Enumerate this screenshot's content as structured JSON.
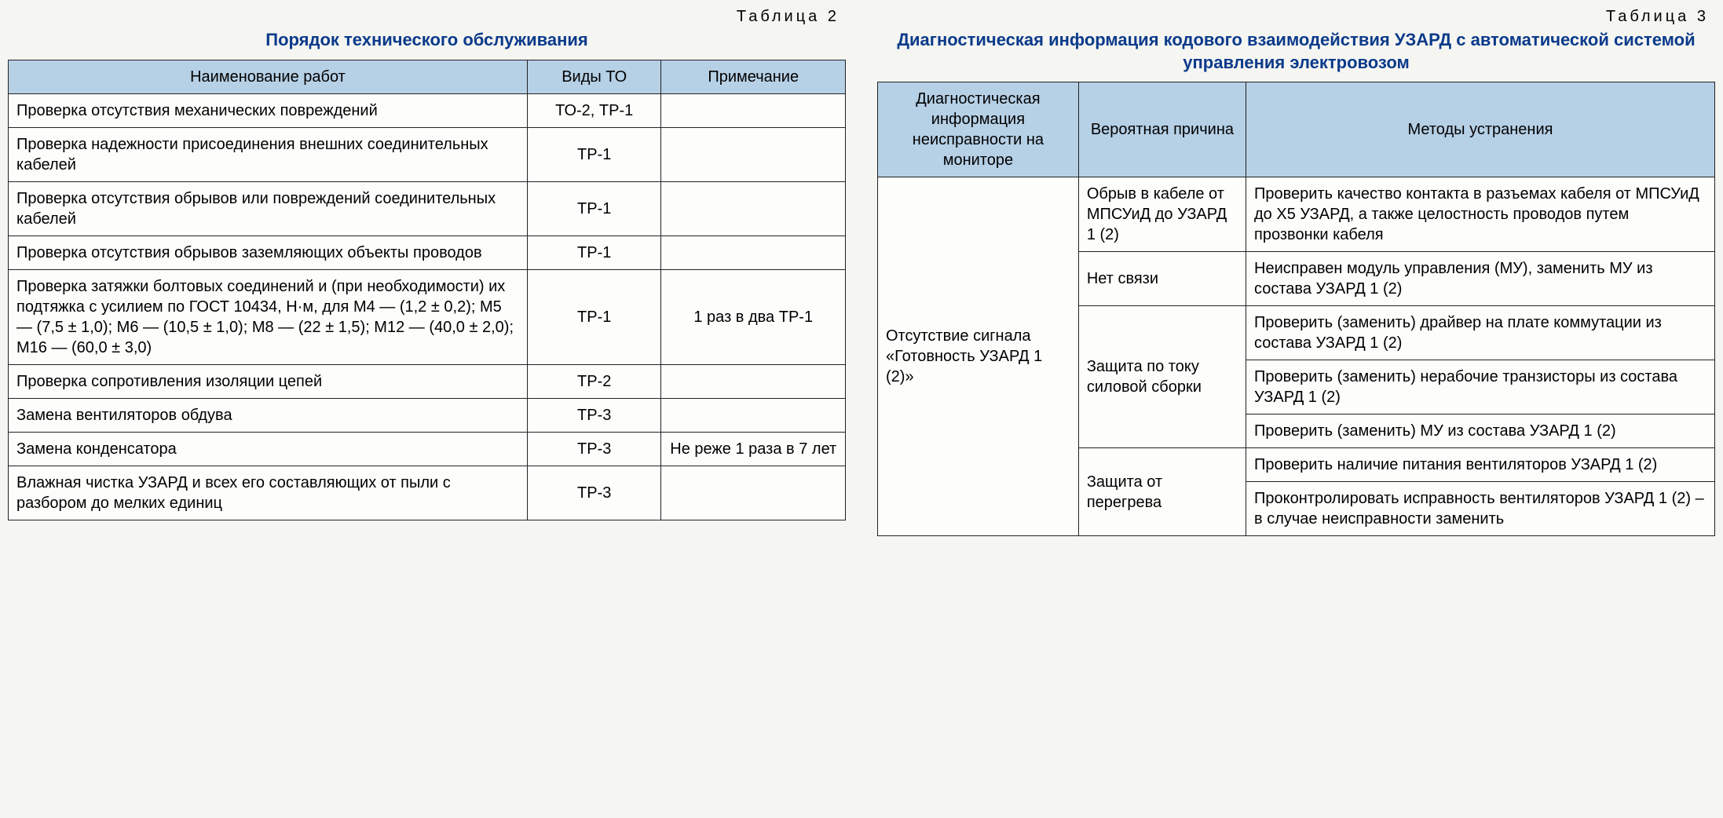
{
  "tableA": {
    "label": "Таблица 2",
    "title": "Порядок технического обслуживания",
    "headers": [
      "Наименование работ",
      "Виды ТО",
      "Примечание"
    ],
    "rows": [
      {
        "name": "Проверка отсутствия механических повреждений",
        "type": "ТО-2, ТР-1",
        "note": ""
      },
      {
        "name": "Проверка надежности присоединения внешних соединительных кабелей",
        "type": "ТР-1",
        "note": ""
      },
      {
        "name": "Проверка отсутствия обрывов или повреждений соединительных кабелей",
        "type": "ТР-1",
        "note": ""
      },
      {
        "name": "Проверка отсутствия обрывов заземляющих объекты проводов",
        "type": "ТР-1",
        "note": ""
      },
      {
        "name": "Проверка затяжки болтовых соединений и (при необходимости) их подтяжка с усилием по ГОСТ 10434, Н·м, для М4 — (1,2 ± 0,2); М5 — (7,5 ± 1,0); М6 — (10,5 ± 1,0); М8 — (22 ± 1,5); М12 — (40,0 ± 2,0); М16 — (60,0 ± 3,0)",
        "type": "ТР-1",
        "note": "1 раз в два ТР-1"
      },
      {
        "name": "Проверка сопротивления изоляции цепей",
        "type": "ТР-2",
        "note": ""
      },
      {
        "name": "Замена вентиляторов обдува",
        "type": "ТР-3",
        "note": ""
      },
      {
        "name": "Замена конденсатора",
        "type": "ТР-3",
        "note": "Не реже 1 раза в 7 лет"
      },
      {
        "name": "Влажная чистка УЗАРД и всех его составляющих от пыли с разбором до мелких единиц",
        "type": "ТР-3",
        "note": ""
      }
    ]
  },
  "tableB": {
    "label": "Таблица 3",
    "title": "Диагностическая информация кодового взаимодействия УЗАРД с автоматической системой управления электровозом",
    "headers": [
      "Диагностическая информация неисправности на мониторе",
      "Вероятная причина",
      "Методы устранения"
    ],
    "diag": "Отсутствие сигнала «Готовность УЗАРД 1 (2)»",
    "groups": [
      {
        "cause": "Обрыв в кабеле от МПСУиД до УЗАРД 1 (2)",
        "methods": [
          "Проверить качество контакта в разъемах кабеля от МПСУиД до Х5 УЗАРД, а также целостность проводов путем прозвонки кабеля"
        ]
      },
      {
        "cause": "Нет связи",
        "methods": [
          "Неисправен модуль управления (МУ), заменить МУ из состава УЗАРД 1 (2)"
        ]
      },
      {
        "cause": "Защита по току силовой сборки",
        "methods": [
          "Проверить (заменить) драйвер на плате коммутации из состава УЗАРД 1 (2)",
          "Проверить (заменить) нерабочие транзисторы из состава УЗАРД 1 (2)",
          "Проверить (заменить) МУ из состава УЗАРД 1 (2)"
        ]
      },
      {
        "cause": "Защита от перегрева",
        "methods": [
          "Проверить наличие питания вентиляторов УЗАРД 1 (2)",
          "Проконтролировать исправность вентиляторов УЗАРД 1 (2) – в случае неисправности заменить"
        ]
      }
    ]
  },
  "colors": {
    "header_bg": "#b6d0e6",
    "title_color": "#0a3a8a",
    "border_color": "#222222",
    "body_bg": "#f5f5f2",
    "table_bg": "#fdfdfb"
  }
}
